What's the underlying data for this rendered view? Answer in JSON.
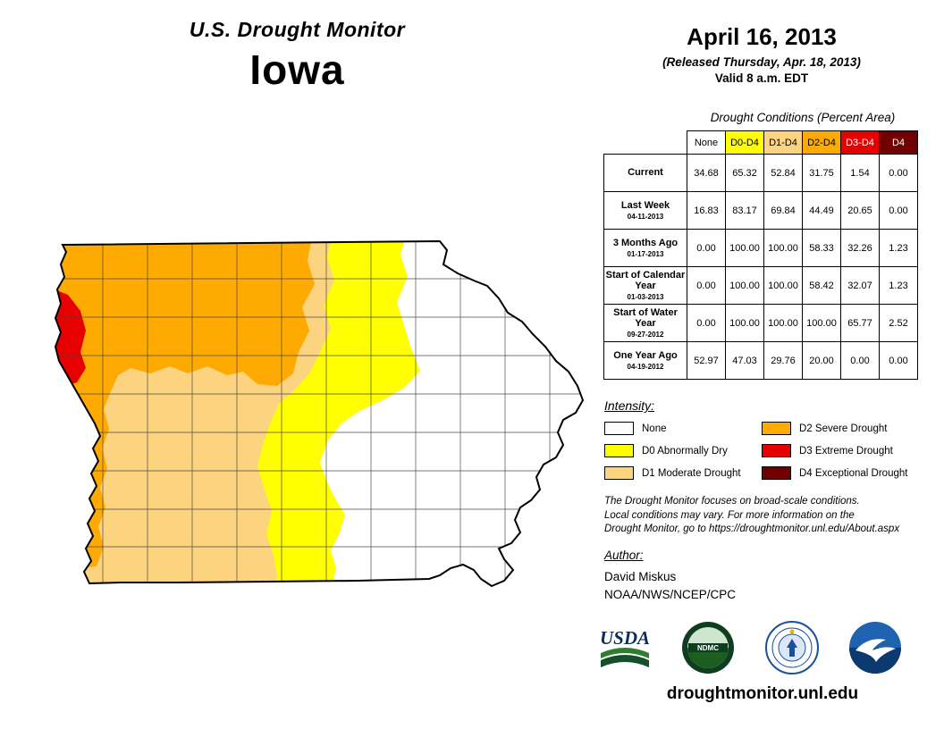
{
  "header": {
    "title": "U.S. Drought Monitor",
    "state": "Iowa"
  },
  "date_block": {
    "date": "April 16, 2013",
    "released": "(Released Thursday, Apr. 18, 2013)",
    "valid": "Valid 8 a.m. EDT"
  },
  "table": {
    "title": "Drought Conditions (Percent Area)",
    "columns": [
      {
        "label": "None",
        "bg": "#FFFFFF",
        "fg": "#000000"
      },
      {
        "label": "D0-D4",
        "bg": "#FFFF00",
        "fg": "#000000"
      },
      {
        "label": "D1-D4",
        "bg": "#FCD37F",
        "fg": "#000000"
      },
      {
        "label": "D2-D4",
        "bg": "#FFAA00",
        "fg": "#000000"
      },
      {
        "label": "D3-D4",
        "bg": "#E60000",
        "fg": "#FFFFFF"
      },
      {
        "label": "D4",
        "bg": "#730000",
        "fg": "#FFFFFF"
      }
    ],
    "rows": [
      {
        "label": "Current",
        "date": "",
        "values": [
          "34.68",
          "65.32",
          "52.84",
          "31.75",
          "1.54",
          "0.00"
        ]
      },
      {
        "label": "Last Week",
        "date": "04-11-2013",
        "values": [
          "16.83",
          "83.17",
          "69.84",
          "44.49",
          "20.65",
          "0.00"
        ]
      },
      {
        "label": "3 Months Ago",
        "date": "01-17-2013",
        "values": [
          "0.00",
          "100.00",
          "100.00",
          "58.33",
          "32.26",
          "1.23"
        ]
      },
      {
        "label": "Start of Calendar Year",
        "date": "01-03-2013",
        "values": [
          "0.00",
          "100.00",
          "100.00",
          "58.42",
          "32.07",
          "1.23"
        ]
      },
      {
        "label": "Start of Water Year",
        "date": "09-27-2012",
        "values": [
          "0.00",
          "100.00",
          "100.00",
          "100.00",
          "65.77",
          "2.52"
        ]
      },
      {
        "label": "One Year Ago",
        "date": "04-19-2012",
        "values": [
          "52.97",
          "47.03",
          "29.76",
          "20.00",
          "0.00",
          "0.00"
        ]
      }
    ]
  },
  "legend": {
    "title": "Intensity:",
    "items": [
      {
        "code": "none",
        "label": "None",
        "color": "#FFFFFF"
      },
      {
        "code": "d0",
        "label": "D0 Abnormally Dry",
        "color": "#FFFF00"
      },
      {
        "code": "d1",
        "label": "D1 Moderate Drought",
        "color": "#FCD37F"
      },
      {
        "code": "d2",
        "label": "D2 Severe Drought",
        "color": "#FFAA00"
      },
      {
        "code": "d3",
        "label": "D3 Extreme Drought",
        "color": "#E60000"
      },
      {
        "code": "d4",
        "label": "D4 Exceptional Drought",
        "color": "#730000"
      }
    ]
  },
  "disclaimer": {
    "lines": [
      "The Drought Monitor focuses on broad-scale conditions.",
      "Local conditions may vary. For more information on the",
      "Drought Monitor, go to https://droughtmonitor.unl.edu/About.aspx"
    ]
  },
  "author": {
    "title": "Author:",
    "name": "David Miskus",
    "org": "NOAA/NWS/NCEP/CPC"
  },
  "logos": [
    {
      "name": "USDA",
      "abbr": "USDA"
    },
    {
      "name": "National Drought Mitigation Center",
      "abbr": "NDMC"
    },
    {
      "name": "Department of Commerce",
      "abbr": ""
    },
    {
      "name": "NOAA",
      "abbr": ""
    }
  ],
  "footer": {
    "url": "droughtmonitor.unl.edu"
  },
  "map": {
    "region": "Iowa",
    "colors": {
      "none": "#FFFFFF",
      "d0": "#FFFF00",
      "d1": "#FCD37F",
      "d2": "#FFAA00",
      "d3": "#E60000",
      "d4": "#730000"
    }
  }
}
